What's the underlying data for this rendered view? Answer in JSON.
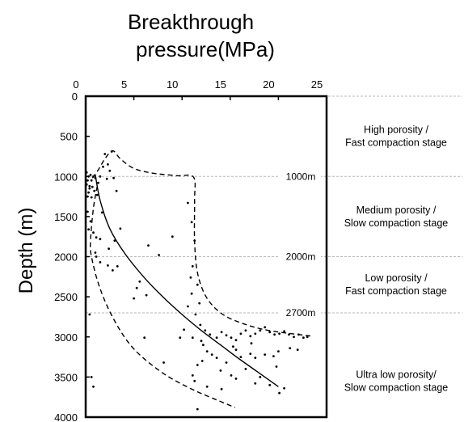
{
  "chart_data": {
    "type": "scatter",
    "title_lines": [
      "Breakthrough",
      "pressure(MPa)"
    ],
    "ylabel": "Depth (m)",
    "xlim": [
      0,
      25
    ],
    "ylim": [
      0,
      4000
    ],
    "y_inverted": true,
    "x_axis_position": "top",
    "x_ticks": [
      "0",
      "5",
      "10",
      "15",
      "20",
      "25"
    ],
    "y_ticks": [
      "0",
      "500",
      "1000",
      "1500",
      "2000",
      "2500",
      "3000",
      "3500",
      "4000"
    ],
    "reference_lines": [
      {
        "depth": 0,
        "label": ""
      },
      {
        "depth": 1000,
        "label": "1000m"
      },
      {
        "depth": 2000,
        "label": "2000m"
      },
      {
        "depth": 2700,
        "label": "2700m"
      }
    ],
    "stages": [
      {
        "lines": [
          "High porosity /",
          "Fast compaction stage"
        ]
      },
      {
        "lines": [
          "Medium  porosity /",
          "Slow compaction stage"
        ]
      },
      {
        "lines": [
          "Low porosity /",
          "Fast compaction stage"
        ]
      },
      {
        "lines": [
          "Ultra low porosity/",
          "Slow compaction stage"
        ]
      }
    ],
    "trend_line": {
      "style": "solid",
      "points": [
        [
          1.0,
          980
        ],
        [
          1.5,
          1300
        ],
        [
          2.5,
          1650
        ],
        [
          4.0,
          1950
        ],
        [
          6.0,
          2250
        ],
        [
          8.0,
          2500
        ],
        [
          10.0,
          2720
        ],
        [
          12.0,
          2920
        ],
        [
          14.0,
          3100
        ],
        [
          16.0,
          3280
        ],
        [
          18.0,
          3450
        ],
        [
          20.0,
          3620
        ]
      ]
    },
    "envelope_upper": {
      "style": "dashed",
      "points": [
        [
          0.7,
          1020
        ],
        [
          1.3,
          920
        ],
        [
          2.0,
          780
        ],
        [
          2.8,
          680
        ],
        [
          3.6,
          780
        ],
        [
          5.0,
          900
        ],
        [
          7.0,
          960
        ],
        [
          9.5,
          990
        ],
        [
          11.2,
          1010
        ],
        [
          11.3,
          1300
        ],
        [
          11.3,
          1800
        ],
        [
          11.6,
          2200
        ],
        [
          12.5,
          2500
        ],
        [
          14.0,
          2700
        ],
        [
          16.0,
          2820
        ],
        [
          19.0,
          2920
        ],
        [
          23.5,
          2990
        ]
      ]
    },
    "envelope_lower": {
      "style": "dashed",
      "points": [
        [
          1.2,
          1120
        ],
        [
          0.8,
          1400
        ],
        [
          0.5,
          1800
        ],
        [
          0.6,
          2000
        ],
        [
          1.5,
          2400
        ],
        [
          3.0,
          2800
        ],
        [
          5.0,
          3150
        ],
        [
          8.0,
          3450
        ],
        [
          11.0,
          3650
        ],
        [
          13.5,
          3780
        ],
        [
          15.5,
          3880
        ]
      ]
    },
    "points": [
      [
        0.1,
        950
      ],
      [
        0.2,
        1050
      ],
      [
        0.3,
        1000
      ],
      [
        0.4,
        1150
      ],
      [
        0.1,
        1100
      ],
      [
        0.5,
        980
      ],
      [
        0.3,
        1200
      ],
      [
        0.6,
        1050
      ],
      [
        0.8,
        1000
      ],
      [
        0.2,
        1250
      ],
      [
        0.7,
        1130
      ],
      [
        1.0,
        1020
      ],
      [
        1.3,
        1080
      ],
      [
        0.9,
        1180
      ],
      [
        1.5,
        1000
      ],
      [
        1.2,
        1230
      ],
      [
        0.4,
        1120
      ],
      [
        0.6,
        1260
      ],
      [
        2.0,
        720
      ],
      [
        2.3,
        850
      ],
      [
        2.7,
        690
      ],
      [
        2.5,
        930
      ],
      [
        2.9,
        1020
      ],
      [
        3.2,
        1180
      ],
      [
        2.2,
        1030
      ],
      [
        1.8,
        880
      ],
      [
        0.2,
        1440
      ],
      [
        0.5,
        1560
      ],
      [
        0.3,
        1660
      ],
      [
        0.8,
        1700
      ],
      [
        1.1,
        1760
      ],
      [
        1.5,
        1780
      ],
      [
        1.7,
        1450
      ],
      [
        3.6,
        1650
      ],
      [
        3.0,
        1800
      ],
      [
        2.4,
        1900
      ],
      [
        6.5,
        1860
      ],
      [
        7.6,
        1980
      ],
      [
        9.0,
        1750
      ],
      [
        1.1,
        2000
      ],
      [
        1.5,
        2070
      ],
      [
        2.3,
        2110
      ],
      [
        2.8,
        2170
      ],
      [
        3.3,
        2120
      ],
      [
        5.6,
        2310
      ],
      [
        5.3,
        2390
      ],
      [
        5.0,
        2520
      ],
      [
        6.3,
        2480
      ],
      [
        10.6,
        1330
      ],
      [
        11.0,
        1570
      ],
      [
        11.3,
        1800
      ],
      [
        11.1,
        2120
      ],
      [
        10.9,
        2260
      ],
      [
        11.6,
        2350
      ],
      [
        11.0,
        2460
      ],
      [
        11.8,
        2580
      ],
      [
        10.6,
        2620
      ],
      [
        10.2,
        2910
      ],
      [
        9.8,
        3010
      ],
      [
        11.4,
        2720
      ],
      [
        11.9,
        2850
      ],
      [
        12.4,
        2920
      ],
      [
        11.1,
        3010
      ],
      [
        12.0,
        3050
      ],
      [
        12.9,
        2970
      ],
      [
        13.6,
        3010
      ],
      [
        14.1,
        2940
      ],
      [
        14.6,
        2980
      ],
      [
        15.1,
        3010
      ],
      [
        15.6,
        3040
      ],
      [
        16.1,
        2960
      ],
      [
        16.6,
        2920
      ],
      [
        17.1,
        2990
      ],
      [
        17.6,
        2960
      ],
      [
        18.1,
        2920
      ],
      [
        18.6,
        2880
      ],
      [
        19.1,
        2940
      ],
      [
        19.6,
        2970
      ],
      [
        20.1,
        2960
      ],
      [
        20.6,
        2930
      ],
      [
        21.1,
        2970
      ],
      [
        21.6,
        3000
      ],
      [
        22.1,
        2970
      ],
      [
        22.6,
        3010
      ],
      [
        23.0,
        3000
      ],
      [
        21.2,
        3140
      ],
      [
        22.0,
        3160
      ],
      [
        20.0,
        3180
      ],
      [
        19.5,
        3240
      ],
      [
        18.6,
        3220
      ],
      [
        17.6,
        3260
      ],
      [
        17.1,
        3210
      ],
      [
        16.1,
        3250
      ],
      [
        15.6,
        3160
      ],
      [
        14.6,
        3320
      ],
      [
        13.6,
        3260
      ],
      [
        13.1,
        3220
      ],
      [
        12.6,
        3180
      ],
      [
        12.1,
        3300
      ],
      [
        11.6,
        3350
      ],
      [
        11.1,
        3480
      ],
      [
        11.3,
        3550
      ],
      [
        12.6,
        3620
      ],
      [
        14.1,
        3650
      ],
      [
        15.1,
        3480
      ],
      [
        15.6,
        3520
      ],
      [
        16.6,
        3400
      ],
      [
        17.6,
        3580
      ],
      [
        18.1,
        3500
      ],
      [
        19.1,
        3600
      ],
      [
        20.1,
        3700
      ],
      [
        20.6,
        3640
      ],
      [
        19.8,
        3370
      ],
      [
        17.2,
        3080
      ],
      [
        15.3,
        3120
      ],
      [
        14.0,
        3420
      ],
      [
        12.2,
        3100
      ],
      [
        6.1,
        3010
      ],
      [
        8.1,
        3320
      ],
      [
        11.6,
        3900
      ],
      [
        0.6,
        3500
      ],
      [
        0.8,
        3620
      ],
      [
        0.4,
        2720
      ],
      [
        1.0,
        1950
      ]
    ]
  }
}
